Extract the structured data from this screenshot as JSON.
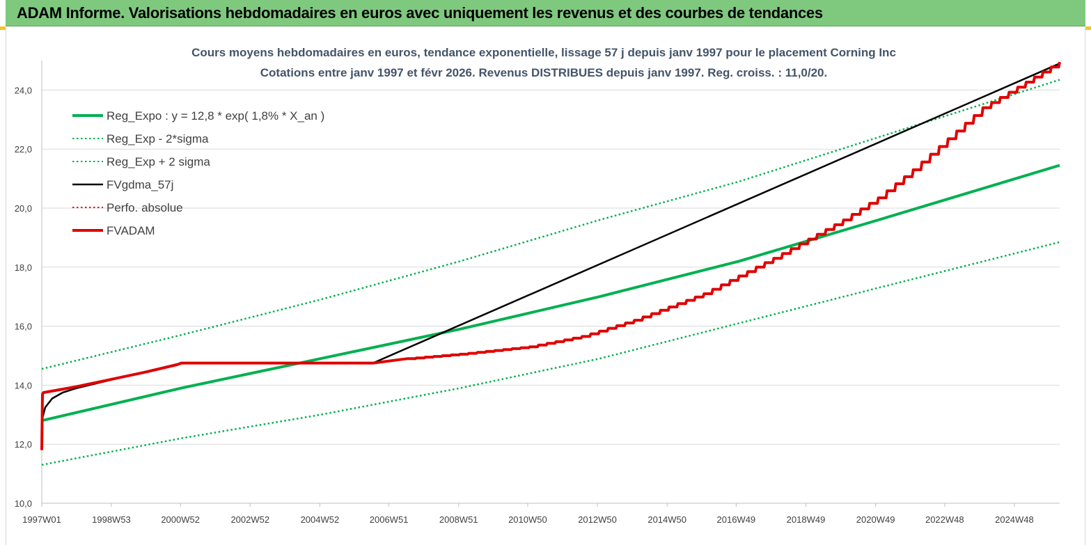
{
  "header": {
    "title": "ADAM Informe. Valorisations hebdomadaires en euros avec uniquement les revenus et des courbes de tendances"
  },
  "chart_data": {
    "type": "line",
    "title_line1": "Cours moyens hebdomadaires en euros, tendance exponentielle, lissage 57 j depuis janv 1997 pour le placement Corning Inc",
    "title_line2": "Cotations entre janv 1997 et févr 2026. Revenus DISTRIBUES depuis janv 1997. Reg. croiss. : 11,0/20.",
    "xlabel": "",
    "ylabel": "",
    "x_ticks": [
      "1997W01",
      "1998W53",
      "2000W52",
      "2002W52",
      "2004W52",
      "2006W51",
      "2008W51",
      "2010W50",
      "2012W50",
      "2014W50",
      "2016W49",
      "2018W49",
      "2020W49",
      "2022W48",
      "2024W48"
    ],
    "x_range_years": [
      1997.0,
      2026.2
    ],
    "ylim": [
      10,
      25
    ],
    "y_ticks": [
      "10,0",
      "12,0",
      "14,0",
      "16,0",
      "18,0",
      "20,0",
      "22,0",
      "24,0"
    ],
    "y_tick_values": [
      10,
      12,
      14,
      16,
      18,
      20,
      22,
      24
    ],
    "grid": "horizontal",
    "legend_position": "top-left",
    "series": [
      {
        "name": "Reg_Expo : y = 12,8 * exp( 1,8% *  X_an )",
        "color": "#00b050",
        "style": "solid-thick",
        "x": [
          1997.0,
          2001.0,
          2005.0,
          2009.0,
          2013.0,
          2017.0,
          2021.0,
          2026.2
        ],
        "y": [
          12.8,
          13.9,
          14.9,
          15.9,
          17.0,
          18.2,
          19.6,
          21.45
        ]
      },
      {
        "name": "Reg_Exp - 2*sigma",
        "color": "#00b050",
        "style": "dotted",
        "x": [
          1997.0,
          2001.0,
          2005.0,
          2009.0,
          2013.0,
          2017.0,
          2021.0,
          2026.2
        ],
        "y": [
          11.3,
          12.2,
          13.0,
          13.9,
          14.9,
          16.1,
          17.3,
          18.85
        ]
      },
      {
        "name": "Reg_Exp + 2 sigma",
        "color": "#00b050",
        "style": "dotted",
        "x": [
          1997.0,
          2001.0,
          2005.0,
          2009.0,
          2013.0,
          2017.0,
          2021.0,
          2026.2
        ],
        "y": [
          14.55,
          15.7,
          16.9,
          18.2,
          19.6,
          20.9,
          22.4,
          24.35
        ]
      },
      {
        "name": "FVgdma_57j",
        "color": "#000000",
        "style": "solid",
        "x": [
          1997.0,
          1997.1,
          1997.3,
          1997.6,
          1998.0,
          2001.0,
          2006.5,
          2026.2
        ],
        "y": [
          12.8,
          13.25,
          13.55,
          13.75,
          13.9,
          14.75,
          14.75,
          24.9
        ]
      },
      {
        "name": "Perfo. absolue",
        "color": "#ff0000",
        "style": "dotted",
        "x": [],
        "y": []
      },
      {
        "name": "FVADAM",
        "color": "#e00000",
        "style": "solid-thick",
        "x": [
          1997.0,
          1997.02,
          1997.05,
          1998.0,
          1999.0,
          2000.0,
          2000.9,
          2001.0,
          2006.5,
          2007.5,
          2009.0,
          2011.0,
          2012.5,
          2014.0,
          2016.0,
          2018.0,
          2019.0,
          2020.0,
          2021.0,
          2022.0,
          2023.0,
          2024.0,
          2025.0,
          2026.2
        ],
        "y": [
          11.8,
          13.7,
          13.75,
          13.95,
          14.2,
          14.45,
          14.7,
          14.75,
          14.75,
          14.9,
          15.05,
          15.3,
          15.65,
          16.2,
          17.1,
          18.3,
          18.95,
          19.6,
          20.35,
          21.3,
          22.35,
          23.4,
          24.1,
          24.95
        ]
      }
    ]
  }
}
